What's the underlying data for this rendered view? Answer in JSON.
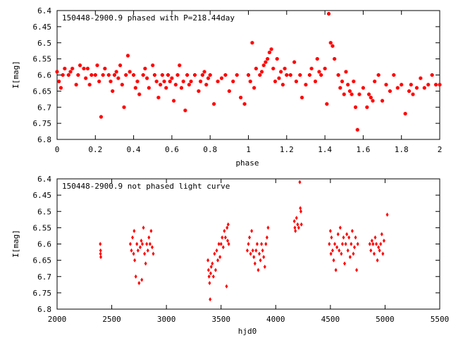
{
  "chart_data": [
    {
      "type": "scatter",
      "title": "150448-2900.9 phased with P=218.44day",
      "xlabel": "phase",
      "ylabel": "I[mag]",
      "xlim": [
        0,
        2
      ],
      "ylim": [
        6.8,
        6.4
      ],
      "y_inverted": true,
      "grid": false,
      "legend": "none",
      "marker": "cross",
      "color": "#ff0000",
      "x_ticks": [
        "0",
        "0.2",
        "0.4",
        "0.6",
        "0.8",
        "1",
        "1.2",
        "1.4",
        "1.6",
        "1.8",
        "2"
      ],
      "y_ticks": [
        "6.4",
        "6.45",
        "6.5",
        "6.55",
        "6.6",
        "6.65",
        "6.7",
        "6.75",
        "6.8"
      ],
      "points": [
        [
          0.0,
          6.59
        ],
        [
          0.01,
          6.62
        ],
        [
          0.02,
          6.64
        ],
        [
          0.03,
          6.6
        ],
        [
          0.04,
          6.58
        ],
        [
          0.06,
          6.6
        ],
        [
          0.07,
          6.59
        ],
        [
          0.08,
          6.58
        ],
        [
          0.1,
          6.63
        ],
        [
          0.11,
          6.6
        ],
        [
          0.12,
          6.57
        ],
        [
          0.14,
          6.58
        ],
        [
          0.15,
          6.61
        ],
        [
          0.16,
          6.58
        ],
        [
          0.17,
          6.63
        ],
        [
          0.18,
          6.6
        ],
        [
          0.2,
          6.6
        ],
        [
          0.21,
          6.57
        ],
        [
          0.22,
          6.62
        ],
        [
          0.23,
          6.73
        ],
        [
          0.24,
          6.6
        ],
        [
          0.25,
          6.58
        ],
        [
          0.27,
          6.6
        ],
        [
          0.28,
          6.62
        ],
        [
          0.29,
          6.65
        ],
        [
          0.3,
          6.6
        ],
        [
          0.31,
          6.59
        ],
        [
          0.32,
          6.61
        ],
        [
          0.33,
          6.57
        ],
        [
          0.34,
          6.63
        ],
        [
          0.35,
          6.7
        ],
        [
          0.36,
          6.6
        ],
        [
          0.37,
          6.54
        ],
        [
          0.38,
          6.59
        ],
        [
          0.4,
          6.6
        ],
        [
          0.41,
          6.64
        ],
        [
          0.42,
          6.62
        ],
        [
          0.43,
          6.66
        ],
        [
          0.45,
          6.6
        ],
        [
          0.46,
          6.58
        ],
        [
          0.47,
          6.61
        ],
        [
          0.48,
          6.64
        ],
        [
          0.5,
          6.57
        ],
        [
          0.51,
          6.6
        ],
        [
          0.52,
          6.62
        ],
        [
          0.53,
          6.67
        ],
        [
          0.54,
          6.63
        ],
        [
          0.55,
          6.6
        ],
        [
          0.56,
          6.62
        ],
        [
          0.57,
          6.64
        ],
        [
          0.58,
          6.6
        ],
        [
          0.59,
          6.62
        ],
        [
          0.6,
          6.61
        ],
        [
          0.61,
          6.68
        ],
        [
          0.62,
          6.63
        ],
        [
          0.63,
          6.6
        ],
        [
          0.64,
          6.57
        ],
        [
          0.65,
          6.64
        ],
        [
          0.66,
          6.62
        ],
        [
          0.67,
          6.71
        ],
        [
          0.68,
          6.6
        ],
        [
          0.69,
          6.63
        ],
        [
          0.7,
          6.62
        ],
        [
          0.72,
          6.6
        ],
        [
          0.74,
          6.65
        ],
        [
          0.75,
          6.62
        ],
        [
          0.76,
          6.6
        ],
        [
          0.77,
          6.59
        ],
        [
          0.78,
          6.63
        ],
        [
          0.79,
          6.61
        ],
        [
          0.8,
          6.6
        ],
        [
          0.82,
          6.69
        ],
        [
          0.84,
          6.62
        ],
        [
          0.86,
          6.61
        ],
        [
          0.88,
          6.6
        ],
        [
          0.9,
          6.65
        ],
        [
          0.92,
          6.62
        ],
        [
          0.94,
          6.6
        ],
        [
          0.96,
          6.67
        ],
        [
          0.98,
          6.69
        ],
        [
          1.0,
          6.6
        ],
        [
          1.01,
          6.62
        ],
        [
          1.02,
          6.5
        ],
        [
          1.03,
          6.64
        ],
        [
          1.04,
          6.58
        ],
        [
          1.06,
          6.6
        ],
        [
          1.07,
          6.59
        ],
        [
          1.08,
          6.57
        ],
        [
          1.09,
          6.56
        ],
        [
          1.1,
          6.55
        ],
        [
          1.11,
          6.53
        ],
        [
          1.12,
          6.52
        ],
        [
          1.13,
          6.58
        ],
        [
          1.14,
          6.62
        ],
        [
          1.15,
          6.55
        ],
        [
          1.16,
          6.61
        ],
        [
          1.17,
          6.59
        ],
        [
          1.18,
          6.63
        ],
        [
          1.19,
          6.58
        ],
        [
          1.2,
          6.6
        ],
        [
          1.22,
          6.6
        ],
        [
          1.24,
          6.56
        ],
        [
          1.25,
          6.62
        ],
        [
          1.27,
          6.6
        ],
        [
          1.28,
          6.67
        ],
        [
          1.3,
          6.63
        ],
        [
          1.32,
          6.6
        ],
        [
          1.33,
          6.58
        ],
        [
          1.35,
          6.62
        ],
        [
          1.36,
          6.55
        ],
        [
          1.37,
          6.59
        ],
        [
          1.38,
          6.6
        ],
        [
          1.4,
          6.58
        ],
        [
          1.41,
          6.69
        ],
        [
          1.42,
          6.41
        ],
        [
          1.43,
          6.5
        ],
        [
          1.44,
          6.51
        ],
        [
          1.45,
          6.55
        ],
        [
          1.47,
          6.6
        ],
        [
          1.48,
          6.64
        ],
        [
          1.49,
          6.62
        ],
        [
          1.5,
          6.66
        ],
        [
          1.51,
          6.59
        ],
        [
          1.52,
          6.63
        ],
        [
          1.53,
          6.65
        ],
        [
          1.54,
          6.66
        ],
        [
          1.55,
          6.62
        ],
        [
          1.56,
          6.7
        ],
        [
          1.57,
          6.77
        ],
        [
          1.58,
          6.66
        ],
        [
          1.6,
          6.64
        ],
        [
          1.62,
          6.7
        ],
        [
          1.63,
          6.66
        ],
        [
          1.64,
          6.67
        ],
        [
          1.65,
          6.68
        ],
        [
          1.66,
          6.62
        ],
        [
          1.68,
          6.6
        ],
        [
          1.7,
          6.68
        ],
        [
          1.72,
          6.63
        ],
        [
          1.74,
          6.65
        ],
        [
          1.76,
          6.6
        ],
        [
          1.78,
          6.64
        ],
        [
          1.8,
          6.63
        ],
        [
          1.82,
          6.72
        ],
        [
          1.84,
          6.65
        ],
        [
          1.85,
          6.63
        ],
        [
          1.86,
          6.66
        ],
        [
          1.88,
          6.64
        ],
        [
          1.9,
          6.61
        ],
        [
          1.92,
          6.64
        ],
        [
          1.94,
          6.63
        ],
        [
          1.96,
          6.6
        ],
        [
          1.98,
          6.63
        ],
        [
          2.0,
          6.63
        ]
      ]
    },
    {
      "type": "scatter",
      "title": "150448-2900.9 not phased light curve",
      "xlabel": "hjd0",
      "ylabel": "I[mag]",
      "xlim": [
        2000,
        5500
      ],
      "ylim": [
        6.8,
        6.4
      ],
      "y_inverted": true,
      "grid": false,
      "legend": "none",
      "marker": "diamond",
      "color": "#ff0000",
      "x_ticks": [
        "2000",
        "2500",
        "3000",
        "3500",
        "4000",
        "4500",
        "5000",
        "5500"
      ],
      "y_ticks": [
        "6.4",
        "6.45",
        "6.5",
        "6.55",
        "6.6",
        "6.65",
        "6.7",
        "6.75",
        "6.8"
      ],
      "points": [
        [
          2395,
          6.6
        ],
        [
          2397,
          6.63
        ],
        [
          2398,
          6.62
        ],
        [
          2400,
          6.64
        ],
        [
          2670,
          6.6
        ],
        [
          2680,
          6.62
        ],
        [
          2690,
          6.58
        ],
        [
          2700,
          6.63
        ],
        [
          2705,
          6.56
        ],
        [
          2710,
          6.65
        ],
        [
          2720,
          6.7
        ],
        [
          2730,
          6.6
        ],
        [
          2740,
          6.62
        ],
        [
          2750,
          6.72
        ],
        [
          2760,
          6.61
        ],
        [
          2770,
          6.59
        ],
        [
          2775,
          6.71
        ],
        [
          2780,
          6.6
        ],
        [
          2790,
          6.55
        ],
        [
          2800,
          6.63
        ],
        [
          2810,
          6.66
        ],
        [
          2820,
          6.6
        ],
        [
          2830,
          6.62
        ],
        [
          2840,
          6.58
        ],
        [
          2850,
          6.6
        ],
        [
          2860,
          6.56
        ],
        [
          2870,
          6.61
        ],
        [
          2880,
          6.63
        ],
        [
          3380,
          6.65
        ],
        [
          3385,
          6.68
        ],
        [
          3390,
          6.7
        ],
        [
          3395,
          6.72
        ],
        [
          3400,
          6.77
        ],
        [
          3405,
          6.69
        ],
        [
          3410,
          6.67
        ],
        [
          3420,
          6.66
        ],
        [
          3430,
          6.7
        ],
        [
          3440,
          6.63
        ],
        [
          3450,
          6.68
        ],
        [
          3460,
          6.62
        ],
        [
          3470,
          6.65
        ],
        [
          3480,
          6.6
        ],
        [
          3490,
          6.64
        ],
        [
          3500,
          6.6
        ],
        [
          3510,
          6.58
        ],
        [
          3520,
          6.61
        ],
        [
          3530,
          6.56
        ],
        [
          3540,
          6.58
        ],
        [
          3550,
          6.73
        ],
        [
          3555,
          6.55
        ],
        [
          3560,
          6.59
        ],
        [
          3565,
          6.54
        ],
        [
          3570,
          6.6
        ],
        [
          3740,
          6.62
        ],
        [
          3750,
          6.6
        ],
        [
          3760,
          6.58
        ],
        [
          3770,
          6.63
        ],
        [
          3780,
          6.56
        ],
        [
          3790,
          6.62
        ],
        [
          3800,
          6.64
        ],
        [
          3810,
          6.66
        ],
        [
          3820,
          6.62
        ],
        [
          3830,
          6.6
        ],
        [
          3840,
          6.68
        ],
        [
          3850,
          6.63
        ],
        [
          3860,
          6.65
        ],
        [
          3870,
          6.6
        ],
        [
          3880,
          6.62
        ],
        [
          3890,
          6.64
        ],
        [
          3900,
          6.67
        ],
        [
          3910,
          6.6
        ],
        [
          3920,
          6.58
        ],
        [
          3930,
          6.55
        ],
        [
          4170,
          6.53
        ],
        [
          4175,
          6.55
        ],
        [
          4180,
          6.56
        ],
        [
          4190,
          6.52
        ],
        [
          4200,
          6.54
        ],
        [
          4210,
          6.55
        ],
        [
          4220,
          6.41
        ],
        [
          4225,
          6.49
        ],
        [
          4230,
          6.5
        ],
        [
          4235,
          6.54
        ],
        [
          4490,
          6.6
        ],
        [
          4500,
          6.56
        ],
        [
          4505,
          6.63
        ],
        [
          4510,
          6.58
        ],
        [
          4520,
          6.62
        ],
        [
          4530,
          6.65
        ],
        [
          4540,
          6.6
        ],
        [
          4550,
          6.68
        ],
        [
          4560,
          6.61
        ],
        [
          4570,
          6.57
        ],
        [
          4580,
          6.62
        ],
        [
          4590,
          6.55
        ],
        [
          4600,
          6.63
        ],
        [
          4610,
          6.6
        ],
        [
          4620,
          6.58
        ],
        [
          4630,
          6.66
        ],
        [
          4640,
          6.6
        ],
        [
          4650,
          6.57
        ],
        [
          4660,
          6.62
        ],
        [
          4670,
          6.58
        ],
        [
          4680,
          6.64
        ],
        [
          4690,
          6.6
        ],
        [
          4700,
          6.56
        ],
        [
          4710,
          6.63
        ],
        [
          4720,
          6.61
        ],
        [
          4730,
          6.58
        ],
        [
          4740,
          6.68
        ],
        [
          4750,
          6.6
        ],
        [
          4860,
          6.6
        ],
        [
          4870,
          6.62
        ],
        [
          4880,
          6.59
        ],
        [
          4890,
          6.6
        ],
        [
          4900,
          6.63
        ],
        [
          4910,
          6.58
        ],
        [
          4920,
          6.6
        ],
        [
          4930,
          6.65
        ],
        [
          4940,
          6.61
        ],
        [
          4950,
          6.62
        ],
        [
          4960,
          6.6
        ],
        [
          4970,
          6.57
        ],
        [
          4980,
          6.63
        ],
        [
          4990,
          6.59
        ],
        [
          5020,
          6.51
        ]
      ]
    }
  ]
}
